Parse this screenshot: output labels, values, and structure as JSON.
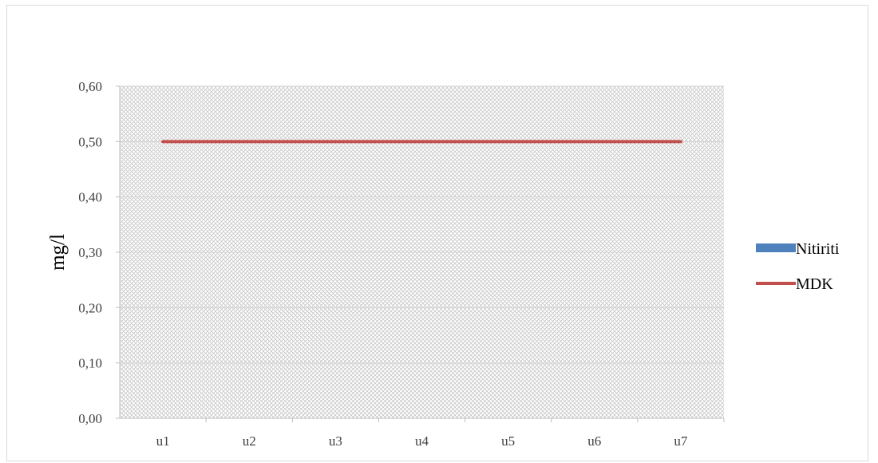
{
  "chart_data": {
    "type": "bar",
    "categories": [
      "u1",
      "u2",
      "u3",
      "u4",
      "u5",
      "u6",
      "u7"
    ],
    "series": [
      {
        "name": "Nitiriti",
        "type": "bar",
        "color": "#4f81bd",
        "values": [
          0,
          0,
          0,
          0,
          0,
          0,
          0
        ]
      },
      {
        "name": "MDK",
        "type": "line",
        "color": "#c0504d",
        "values": [
          0.5,
          0.5,
          0.5,
          0.5,
          0.5,
          0.5,
          0.5
        ]
      }
    ],
    "title": "",
    "xlabel": "",
    "ylabel": "mg/l",
    "ylim": [
      0,
      0.6
    ],
    "yticks": [
      0,
      0.1,
      0.2,
      0.3,
      0.4,
      0.5,
      0.6
    ],
    "ytick_labels": [
      "0,00",
      "0,10",
      "0,20",
      "0,30",
      "0,40",
      "0,50",
      "0,60"
    ],
    "grid": true,
    "legend_position": "right",
    "plot_background": "hatched"
  }
}
